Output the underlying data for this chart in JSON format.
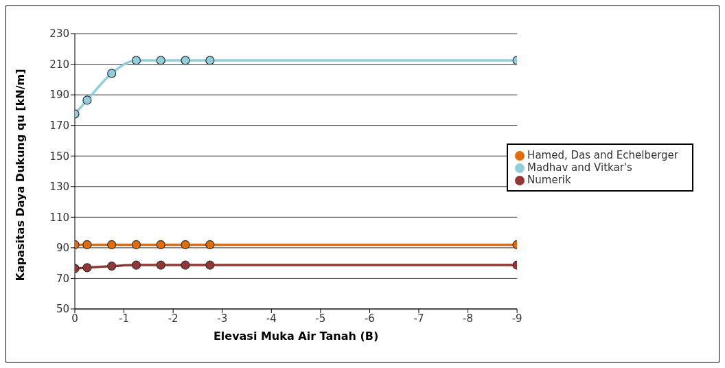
{
  "chart_data": {
    "type": "line",
    "xlabel": "Elevasi Muka Air Tanah (B)",
    "ylabel": "Kapasitas Daya Dukung  qu [kN/m]",
    "x": [
      0,
      -0.25,
      -0.75,
      -1.25,
      -1.75,
      -2.25,
      -2.75,
      -9
    ],
    "series": [
      {
        "name": "Numerik",
        "color": "#943634",
        "values": [
          76.5,
          77,
          78,
          78.7,
          78.7,
          78.7,
          78.7,
          78.7
        ]
      },
      {
        "name": "Madhav and Vitkar's",
        "color": "#92cddc",
        "values": [
          177.5,
          186.5,
          204,
          212.5,
          212.5,
          212.5,
          212.5,
          212.5
        ]
      },
      {
        "name": "Hamed, Das and Echelberger",
        "color": "#e36c09",
        "values": [
          92,
          92,
          92,
          92,
          92,
          92,
          92,
          92
        ]
      }
    ],
    "xlim": [
      0,
      -9
    ],
    "xticks": [
      0,
      -1,
      -2,
      -3,
      -4,
      -5,
      -6,
      -7,
      -8,
      -9
    ],
    "ylim": [
      50,
      230
    ],
    "yticks": [
      50,
      70,
      90,
      110,
      130,
      150,
      170,
      190,
      210,
      230
    ],
    "grid": "y",
    "legend": "right",
    "marker": "circle",
    "line_style": "solid"
  }
}
